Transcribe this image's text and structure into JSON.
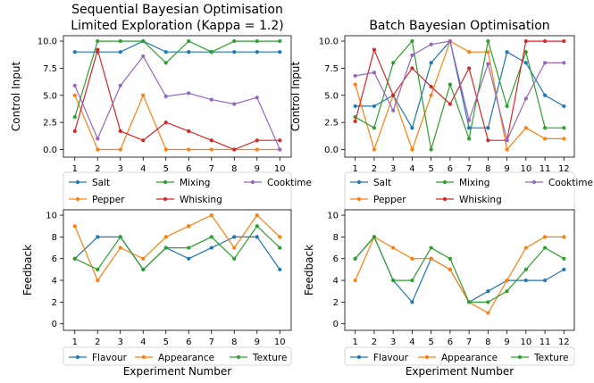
{
  "colors": {
    "blue": "#1f77b4",
    "orange": "#ff7f0e",
    "green": "#2ca02c",
    "red": "#d62728",
    "purple": "#9467bd"
  },
  "chart_data": [
    {
      "id": "seq-control",
      "type": "line",
      "title": [
        "Sequential Bayesian Optimisation",
        "Limited Exploration (Kappa = 1.2)"
      ],
      "xlabel": "",
      "ylabel": "Control Input",
      "x": [
        1,
        2,
        3,
        4,
        5,
        6,
        7,
        8,
        9,
        10
      ],
      "xlim": [
        0.5,
        10.5
      ],
      "ylim": [
        -0.7,
        10.5
      ],
      "yticks": [
        0.0,
        2.5,
        5.0,
        7.5,
        10.0
      ],
      "ytick_labels": [
        "0.0",
        "2.5",
        "5.0",
        "7.5",
        "10.0"
      ],
      "series": [
        {
          "name": "Salt",
          "color": "blue",
          "values": [
            9,
            9,
            9,
            10,
            9,
            9,
            9,
            9,
            9,
            9
          ]
        },
        {
          "name": "Pepper",
          "color": "orange",
          "values": [
            5,
            0,
            0,
            5,
            0,
            0,
            0,
            0,
            0,
            0
          ]
        },
        {
          "name": "Mixing",
          "color": "green",
          "values": [
            3,
            10,
            10,
            10,
            8,
            10,
            9,
            10,
            10,
            10
          ]
        },
        {
          "name": "Whisking",
          "color": "red",
          "values": [
            1.7,
            9.2,
            1.7,
            0.85,
            2.5,
            1.7,
            0.85,
            0,
            0.85,
            0.85
          ]
        },
        {
          "name": "Cooktime",
          "color": "purple",
          "values": [
            5.9,
            1.0,
            5.9,
            8.6,
            4.9,
            5.2,
            4.6,
            4.2,
            4.8,
            0
          ]
        }
      ],
      "legend_order": [
        "Salt",
        "Mixing",
        "Cooktime",
        "Pepper",
        "Whisking"
      ]
    },
    {
      "id": "batch-control",
      "type": "line",
      "title": [
        "Batch Bayesian Optimisation"
      ],
      "xlabel": "",
      "ylabel": "Control Input",
      "x": [
        1,
        2,
        3,
        4,
        5,
        6,
        7,
        8,
        9,
        10,
        11,
        12
      ],
      "xlim": [
        0.45,
        12.55
      ],
      "ylim": [
        -0.7,
        10.5
      ],
      "yticks": [
        0.0,
        2.5,
        5.0,
        7.5,
        10.0
      ],
      "ytick_labels": [
        "0.0",
        "2.5",
        "5.0",
        "7.5",
        "10.0"
      ],
      "series": [
        {
          "name": "Salt",
          "color": "blue",
          "values": [
            4,
            4,
            5,
            2,
            8,
            10,
            2,
            2,
            9,
            8,
            5,
            4
          ]
        },
        {
          "name": "Pepper",
          "color": "orange",
          "values": [
            6,
            0,
            5,
            0,
            5,
            10,
            9,
            9,
            0,
            2,
            1,
            1
          ]
        },
        {
          "name": "Mixing",
          "color": "green",
          "values": [
            3,
            2,
            8,
            10,
            0,
            6,
            1,
            10,
            4,
            9,
            2,
            2
          ]
        },
        {
          "name": "Whisking",
          "color": "red",
          "values": [
            2.6,
            9.2,
            5.0,
            7.5,
            5.8,
            4.2,
            7.5,
            0.85,
            0.85,
            10,
            10,
            10
          ]
        },
        {
          "name": "Cooktime",
          "color": "purple",
          "values": [
            6.8,
            7.1,
            3.6,
            8.7,
            9.7,
            10,
            2.7,
            7.9,
            0.85,
            4.7,
            8,
            8
          ]
        }
      ],
      "legend_order": [
        "Salt",
        "Mixing",
        "Cooktime",
        "Pepper",
        "Whisking"
      ]
    },
    {
      "id": "seq-feedback",
      "type": "line",
      "title": [],
      "xlabel": "Experiment Number",
      "ylabel": "Feedback",
      "x": [
        1,
        2,
        3,
        4,
        5,
        6,
        7,
        8,
        9,
        10
      ],
      "xlim": [
        0.5,
        10.5
      ],
      "ylim": [
        -0.6,
        10.5
      ],
      "yticks": [
        0,
        2,
        4,
        6,
        8,
        10
      ],
      "ytick_labels": [
        "0",
        "2",
        "4",
        "6",
        "8",
        "10"
      ],
      "series": [
        {
          "name": "Flavour",
          "color": "blue",
          "values": [
            6,
            8,
            8,
            5,
            7,
            6,
            7,
            8,
            8,
            5
          ]
        },
        {
          "name": "Appearance",
          "color": "orange",
          "values": [
            9,
            4,
            7,
            6,
            8,
            9,
            10,
            7,
            10,
            8
          ]
        },
        {
          "name": "Texture",
          "color": "green",
          "values": [
            6,
            5,
            8,
            5,
            7,
            7,
            8,
            6,
            9,
            7
          ]
        }
      ],
      "legend_order": [
        "Flavour",
        "Appearance",
        "Texture"
      ]
    },
    {
      "id": "batch-feedback",
      "type": "line",
      "title": [],
      "xlabel": "Experiment Number",
      "ylabel": "Feedback",
      "x": [
        1,
        2,
        3,
        4,
        5,
        6,
        7,
        8,
        9,
        10,
        11,
        12
      ],
      "xlim": [
        0.45,
        12.55
      ],
      "ylim": [
        -0.6,
        10.5
      ],
      "yticks": [
        0,
        2,
        4,
        6,
        8,
        10
      ],
      "ytick_labels": [
        "0",
        "2",
        "4",
        "6",
        "8",
        "10"
      ],
      "series": [
        {
          "name": "Flavour",
          "color": "blue",
          "values": [
            6,
            8,
            4,
            2,
            6,
            5,
            2,
            3,
            4,
            4,
            4,
            5
          ]
        },
        {
          "name": "Appearance",
          "color": "orange",
          "values": [
            4,
            8,
            7,
            6,
            6,
            5,
            2,
            1,
            4,
            7,
            8,
            8
          ]
        },
        {
          "name": "Texture",
          "color": "green",
          "values": [
            6,
            8,
            4,
            4,
            7,
            6,
            2,
            2,
            3,
            5,
            7,
            6
          ]
        }
      ],
      "legend_order": [
        "Flavour",
        "Appearance",
        "Texture"
      ]
    }
  ]
}
